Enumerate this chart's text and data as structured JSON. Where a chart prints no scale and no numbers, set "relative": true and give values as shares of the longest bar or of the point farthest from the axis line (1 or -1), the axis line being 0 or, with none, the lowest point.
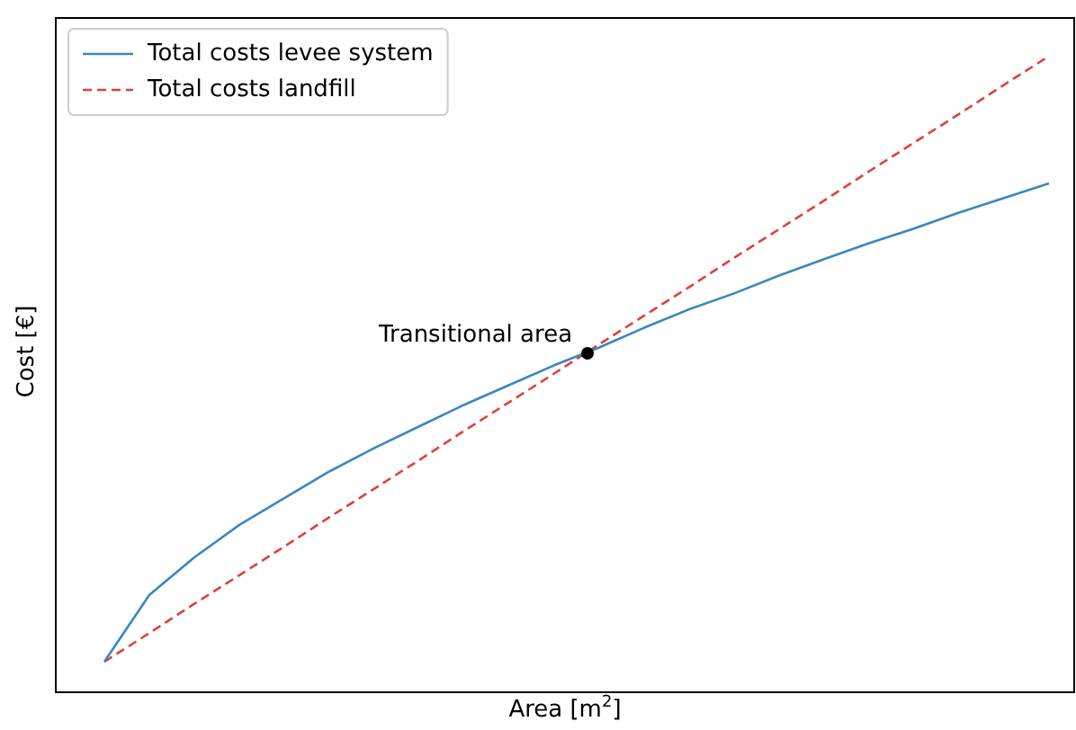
{
  "chart_data": {
    "type": "line",
    "relative": true,
    "xlabel": "Area [m$^{2}$]",
    "ylabel": "Cost [€]",
    "legend": "top left",
    "grid": false,
    "categories": [
      null,
      null,
      null,
      null,
      null,
      null,
      null,
      null,
      null,
      null,
      null,
      null,
      null,
      null,
      null,
      null,
      null,
      null,
      null,
      null,
      null,
      null
    ],
    "series": [
      {
        "name": "Total costs levee system",
        "color": "#3a87c0",
        "line_style": "solid",
        "values": [
          0.048,
          0.153,
          0.212,
          0.263,
          0.305,
          0.347,
          0.384,
          0.418,
          0.452,
          0.483,
          0.514,
          0.542,
          0.573,
          0.602,
          0.627,
          0.655,
          0.681,
          0.706,
          0.729,
          0.754,
          0.777,
          0.8
        ]
      },
      {
        "name": "Total costs landfill",
        "color": "#e0403c",
        "line_style": "dashed",
        "values": [
          0.048,
          0.093,
          0.139,
          0.184,
          0.229,
          0.275,
          0.32,
          0.365,
          0.411,
          0.456,
          0.501,
          0.547,
          0.592,
          0.637,
          0.683,
          0.728,
          0.773,
          0.819,
          0.864,
          0.909,
          0.955,
          1
        ]
      }
    ],
    "annotations": [
      "Transitional area"
    ]
  }
}
